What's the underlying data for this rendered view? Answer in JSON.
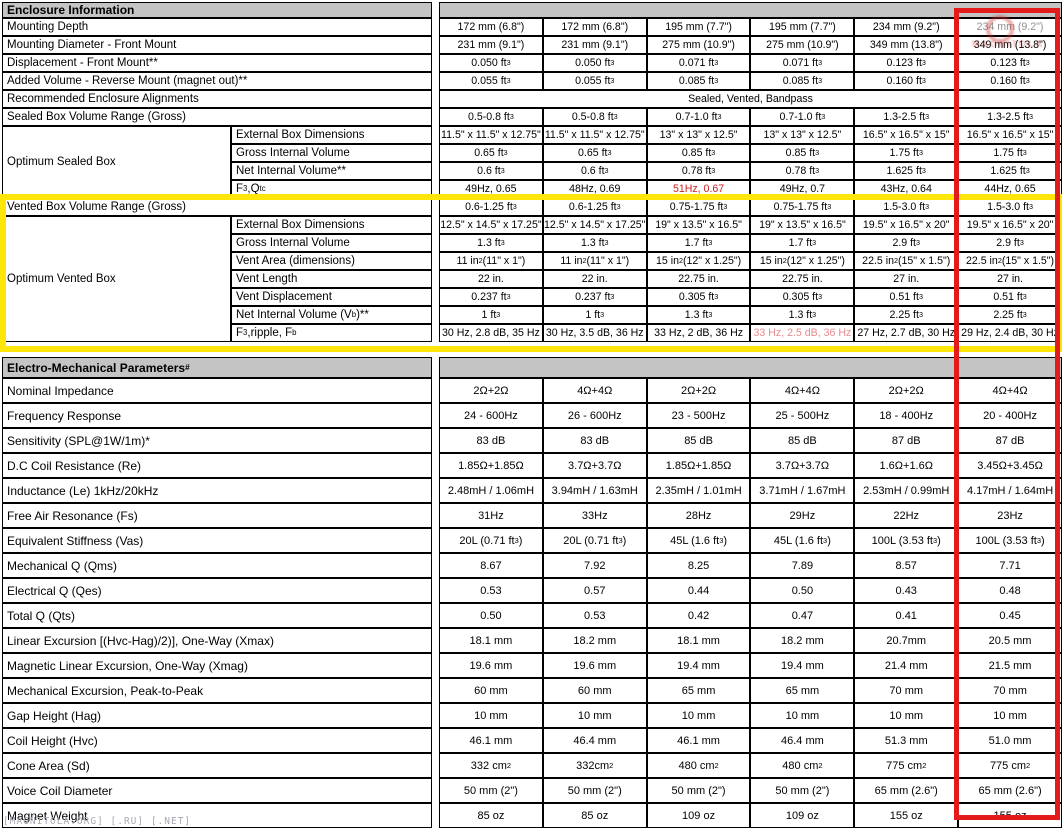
{
  "colors": {
    "highlight_yellow": "#ffe60a",
    "highlight_red": "#e41b1b",
    "header_gray": "#c4c4c4",
    "red_text": "#cc2222",
    "red_text_light": "#e88b8b"
  },
  "watermark": {
    "bottom_left": "[MAGNITOLA.ORG] [.RU] [.NET]",
    "stamp_text": "MAGNITOLA"
  },
  "enclosure": {
    "header": "Enclosure Information",
    "rows": [
      {
        "label": "Mounting Depth",
        "values": [
          "172 mm (6.8\")",
          "172 mm (6.8\")",
          "195 mm (7.7\")",
          "195 mm (7.7\")",
          "234 mm (9.2\")",
          {
            "t": "234 mm (9.2\")",
            "c": "muted"
          }
        ]
      },
      {
        "label": "Mounting Diameter - Front Mount",
        "values": [
          "231 mm (9.1\")",
          "231 mm (9.1\")",
          "275 mm (10.9\")",
          "275 mm (10.9\")",
          "349 mm (13.8\")",
          "349 mm (13.8\")"
        ]
      },
      {
        "label": "Displacement - Front Mount**",
        "values": [
          "0.050 ft^3^",
          "0.050 ft^3^",
          "0.071 ft^3^",
          "0.071 ft^3^",
          "0.123 ft^3^",
          "0.123 ft^3^"
        ]
      },
      {
        "label": "Added Volume - Reverse Mount (magnet out)**",
        "values": [
          "0.055 ft^3^",
          "0.055 ft^3^",
          "0.085 ft^3^",
          "0.085 ft^3^",
          "0.160 ft^3^",
          "0.160 ft^3^"
        ]
      },
      {
        "label": "Recommended Enclosure Alignments",
        "span": "Sealed, Vented, Bandpass"
      },
      {
        "label": "Sealed Box Volume  Range (Gross)",
        "values": [
          "0.5-0.8 ft^3^",
          "0.5-0.8 ft^3^",
          "0.7-1.0 ft^3^",
          "0.7-1.0 ft^3^",
          "1.3-2.5 ft^3^",
          "1.3-2.5 ft^3^"
        ]
      },
      {
        "group": "Optimum Sealed Box",
        "rows": [
          {
            "label": "External Box Dimensions",
            "small": true,
            "values": [
              "11.5\" x 11.5\" x 12.75\"",
              "11.5\" x 11.5\" x 12.75\"",
              "13\" x 13\" x 12.5\"",
              "13\" x 13\" x 12.5\"",
              "16.5\" x 16.5\" x 15\"",
              "16.5\" x 16.5\" x 15\""
            ]
          },
          {
            "label": "Gross Internal Volume",
            "values": [
              "0.65 ft^3^",
              "0.65 ft^3^",
              "0.85 ft^3^",
              "0.85 ft^3^",
              "1.75 ft^3^",
              "1.75 ft^3^"
            ]
          },
          {
            "label": "Net Internal Volume**",
            "values": [
              "0.6 ft^3^",
              "0.6 ft^3^",
              "0.78 ft^3^",
              "0.78 ft^3^",
              "1.625 ft^3^",
              "1.625 ft^3^"
            ]
          },
          {
            "label": "F_3_,Q_tc_",
            "values": [
              "49Hz, 0.65",
              "48Hz, 0.69",
              {
                "t": "51Hz, 0.67",
                "c": "red"
              },
              "49Hz, 0.7",
              "43Hz, 0.64",
              "44Hz, 0.65"
            ]
          }
        ]
      },
      {
        "label": "Vented Box Volume Range (Gross)",
        "values": [
          "0.6-1.25 ft^3^",
          "0.6-1.25 ft^3^",
          "0.75-1.75 ft^3^",
          "0.75-1.75 ft^3^",
          "1.5-3.0 ft^3^",
          "1.5-3.0 ft^3^"
        ]
      },
      {
        "group": "Optimum Vented Box",
        "rows": [
          {
            "label": "External Box Dimensions",
            "small": true,
            "values": [
              "12.5\" x 14.5\" x 17.25\"",
              "12.5\" x 14.5\" x 17.25\"",
              "19\" x 13.5\" x 16.5\"",
              "19\" x 13.5\" x 16.5\"",
              "19.5\" x 16.5\" x 20\"",
              "19.5\" x 16.5\" x 20\""
            ]
          },
          {
            "label": "Gross Internal Volume",
            "values": [
              "1.3 ft^3^",
              "1.3 ft^3^",
              "1.7 ft^3^",
              "1.7 ft^3^",
              "2.9 ft^3^",
              "2.9 ft^3^"
            ]
          },
          {
            "label": "Vent Area (dimensions)",
            "small": true,
            "values": [
              "11 in^2^(11\" x 1\")",
              "11 in^2^(11\" x 1\")",
              "15 in^2^(12\" x 1.25\")",
              "15 in^2^(12\" x 1.25\")",
              "22.5 in^2^(15\" x 1.5\")",
              "22.5 in^2^(15\" x 1.5\")"
            ]
          },
          {
            "label": "Vent Length",
            "values": [
              "22 in.",
              "22 in.",
              "22.75 in.",
              "22.75 in.",
              "27 in.",
              "27 in."
            ]
          },
          {
            "label": "Vent Displacement",
            "values": [
              "0.237 ft^3^",
              "0.237 ft^3^",
              "0.305 ft^3^",
              "0.305 ft^3^",
              "0.51 ft^3^",
              "0.51 ft^3^"
            ]
          },
          {
            "label": "Net Internal Volume (V_b_)**",
            "values": [
              "1 ft^3^",
              "1 ft^3^",
              "1.3 ft^3^",
              "1.3 ft^3^",
              "2.25 ft^3^",
              "2.25 ft^3^"
            ]
          },
          {
            "label": "F_3_,ripple, F_b_",
            "small": true,
            "values": [
              "30 Hz, 2.8 dB, 35 Hz",
              "30 Hz, 3.5 dB, 36 Hz",
              "33 Hz, 2 dB, 36 Hz",
              {
                "t": "33 Hz, 2.5 dB, 36 Hz",
                "c": "red2"
              },
              "27 Hz, 2.7 dB, 30 Hz",
              "29 Hz, 2.4 dB, 30 Hz"
            ]
          }
        ]
      }
    ]
  },
  "electro": {
    "header": "Electro-Mechanical Parameters^#^",
    "rows": [
      {
        "label": "Nominal Impedance",
        "values": [
          "2Ω+2Ω",
          "4Ω+4Ω",
          "2Ω+2Ω",
          "4Ω+4Ω",
          "2Ω+2Ω",
          "4Ω+4Ω"
        ]
      },
      {
        "label": "Frequency Response",
        "values": [
          "24 - 600Hz",
          "26 - 600Hz",
          "23 - 500Hz",
          "25 - 500Hz",
          "18 - 400Hz",
          "20 - 400Hz"
        ]
      },
      {
        "label": "Sensitivity (SPL@1W/1m)*",
        "values": [
          "83 dB",
          "83 dB",
          "85 dB",
          "85 dB",
          "87 dB",
          "87 dB"
        ]
      },
      {
        "label": "D.C Coil Resistance (Re)",
        "values": [
          "1.85Ω+1.85Ω",
          "3.7Ω+3.7Ω",
          "1.85Ω+1.85Ω",
          "3.7Ω+3.7Ω",
          "1.6Ω+1.6Ω",
          "3.45Ω+3.45Ω"
        ]
      },
      {
        "label": "Inductance (Le) 1kHz/20kHz",
        "values": [
          "2.48mH / 1.06mH",
          "3.94mH / 1.63mH",
          "2.35mH / 1.01mH",
          "3.71mH / 1.67mH",
          "2.53mH / 0.99mH",
          "4.17mH / 1.64mH"
        ]
      },
      {
        "label": "Free Air Resonance (Fs)",
        "values": [
          "31Hz",
          "33Hz",
          "28Hz",
          "29Hz",
          "22Hz",
          "23Hz"
        ]
      },
      {
        "label": "Equivalent Stiffness (Vas)",
        "values": [
          "20L (0.71 ft^3^)",
          "20L (0.71 ft^3^)",
          "45L (1.6 ft^3^)",
          "45L (1.6 ft^3^)",
          "100L (3.53 ft^3^)",
          "100L (3.53 ft^3^)"
        ]
      },
      {
        "label": "Mechanical Q (Qms)",
        "values": [
          "8.67",
          "7.92",
          "8.25",
          "7.89",
          "8.57",
          "7.71"
        ]
      },
      {
        "label": "Electrical Q (Qes)",
        "values": [
          "0.53",
          "0.57",
          "0.44",
          "0.50",
          "0.43",
          "0.48"
        ]
      },
      {
        "label": "Total Q (Qts)",
        "values": [
          "0.50",
          "0.53",
          "0.42",
          "0.47",
          "0.41",
          "0.45"
        ]
      },
      {
        "label": "Linear Excursion [(Hvc-Hag)/2)], One-Way (Xmax)",
        "values": [
          "18.1 mm",
          "18.2 mm",
          "18.1 mm",
          "18.2 mm",
          "20.7mm",
          "20.5 mm"
        ]
      },
      {
        "label": "Magnetic Linear Excursion, One-Way (Xmag)",
        "values": [
          "19.6 mm",
          "19.6 mm",
          "19.4 mm",
          "19.4 mm",
          "21.4 mm",
          "21.5 mm"
        ]
      },
      {
        "label": "Mechanical Excursion, Peak-to-Peak",
        "values": [
          "60 mm",
          "60 mm",
          "65 mm",
          "65 mm",
          "70 mm",
          "70 mm"
        ]
      },
      {
        "label": "Gap Height (Hag)",
        "values": [
          "10 mm",
          "10 mm",
          "10 mm",
          "10 mm",
          "10 mm",
          "10 mm"
        ]
      },
      {
        "label": "Coil Height (Hvc)",
        "values": [
          "46.1 mm",
          "46.4 mm",
          "46.1 mm",
          "46.4 mm",
          "51.3 mm",
          "51.0 mm"
        ]
      },
      {
        "label": "Cone Area (Sd)",
        "values": [
          "332 cm^2^",
          "332cm^2^",
          "480 cm^2^",
          "480 cm^2^",
          "775 cm^2^",
          "775 cm^2^"
        ]
      },
      {
        "label": "Voice Coil Diameter",
        "values": [
          "50 mm (2\")",
          "50 mm (2\")",
          "50 mm (2\")",
          "50 mm (2\")",
          "65 mm (2.6\")",
          "65 mm (2.6\")"
        ]
      },
      {
        "label": "Magnet Weight",
        "values": [
          "85 oz",
          "85 oz",
          "109 oz",
          "109 oz",
          "155 oz",
          "155 oz"
        ]
      }
    ]
  }
}
